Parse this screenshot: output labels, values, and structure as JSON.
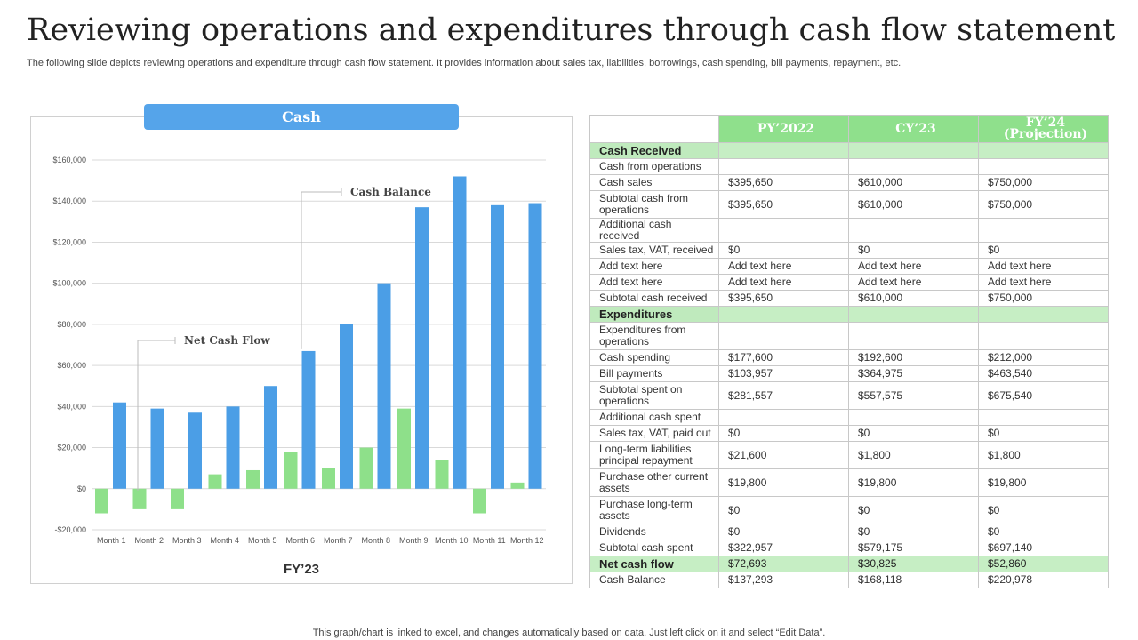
{
  "page": {
    "title": "Reviewing operations and expenditures through cash flow statement",
    "subtitle": "The following slide depicts reviewing operations and expenditure through cash flow statement. It provides information about sales tax, liabilities, borrowings, cash spending, bill payments, repayment, etc.",
    "footer": "This graph/chart is linked to excel,  and changes automatically based on data. Just left click on it and select “Edit Data”."
  },
  "chart_data": {
    "type": "bar",
    "title": "Cash",
    "xlabel": "FY’23",
    "ylabel": "",
    "categories": [
      "Month 1",
      "Month 2",
      "Month 3",
      "Month 4",
      "Month 5",
      "Month 6",
      "Month 7",
      "Month 8",
      "Month 9",
      "Month 10",
      "Month 11",
      "Month 12"
    ],
    "series": [
      {
        "name": "Net Cash Flow",
        "color": "#8ee08a",
        "values": [
          -12000,
          -10000,
          -10000,
          7000,
          9000,
          18000,
          10000,
          20000,
          39000,
          14000,
          -12000,
          3000
        ]
      },
      {
        "name": "Cash Balance",
        "color": "#4b9ee6",
        "values": [
          42000,
          39000,
          37000,
          40000,
          50000,
          67000,
          80000,
          100000,
          137000,
          152000,
          138000,
          139000
        ]
      }
    ],
    "ylim": [
      -20000,
      160000
    ],
    "yticks": [
      -20000,
      0,
      20000,
      40000,
      60000,
      80000,
      100000,
      120000,
      140000,
      160000
    ],
    "ytick_labels": [
      "-$20,000",
      "$0",
      "$20,000",
      "$40,000",
      "$60,000",
      "$80,000",
      "$100,000",
      "$120,000",
      "$140,000",
      "$160,000"
    ],
    "grid": true,
    "annotations": [
      "Net Cash Flow",
      "Cash Balance"
    ]
  },
  "table": {
    "headers": [
      "",
      "PY’2022",
      "CY’23",
      "FY’24 (Projection)"
    ],
    "rows": [
      {
        "type": "section",
        "cells": [
          "Cash Received",
          "",
          "",
          ""
        ]
      },
      {
        "type": "normal",
        "cells": [
          "Cash from operations",
          "",
          "",
          ""
        ]
      },
      {
        "type": "normal",
        "cells": [
          "Cash sales",
          "$395,650",
          "$610,000",
          "$750,000"
        ]
      },
      {
        "type": "tall",
        "cells": [
          "Subtotal cash from operations",
          "$395,650",
          "$610,000",
          "$750,000"
        ]
      },
      {
        "type": "normal",
        "cells": [
          "Additional cash received",
          "",
          "",
          ""
        ]
      },
      {
        "type": "normal",
        "cells": [
          "Sales tax, VAT,  received",
          "$0",
          "$0",
          "$0"
        ]
      },
      {
        "type": "normal",
        "cells": [
          "Add text here",
          "Add text here",
          "Add text here",
          "Add text here"
        ]
      },
      {
        "type": "normal",
        "cells": [
          "Add text here",
          "Add text here",
          "Add text here",
          "Add text here"
        ]
      },
      {
        "type": "normal",
        "cells": [
          "Subtotal cash received",
          "$395,650",
          "$610,000",
          "$750,000"
        ]
      },
      {
        "type": "section",
        "cells": [
          "Expenditures",
          "",
          "",
          ""
        ]
      },
      {
        "type": "tall",
        "cells": [
          "Expenditures from operations",
          "",
          "",
          ""
        ]
      },
      {
        "type": "normal",
        "cells": [
          "Cash spending",
          "$177,600",
          "$192,600",
          "$212,000"
        ]
      },
      {
        "type": "normal",
        "cells": [
          "Bill payments",
          "$103,957",
          "$364,975",
          "$463,540"
        ]
      },
      {
        "type": "tall",
        "cells": [
          "Subtotal spent on operations",
          "$281,557",
          "$557,575",
          "$675,540"
        ]
      },
      {
        "type": "normal",
        "cells": [
          "Additional cash spent",
          "",
          "",
          ""
        ]
      },
      {
        "type": "normal",
        "cells": [
          "Sales tax, VAT,  paid out",
          "$0",
          "$0",
          "$0"
        ]
      },
      {
        "type": "tall",
        "cells": [
          "Long-term liabilities principal repayment",
          "$21,600",
          "$1,800",
          "$1,800"
        ]
      },
      {
        "type": "tall",
        "cells": [
          "Purchase other current assets",
          "$19,800",
          "$19,800",
          "$19,800"
        ]
      },
      {
        "type": "tall",
        "cells": [
          "Purchase long-term assets",
          "$0",
          "$0",
          "$0"
        ]
      },
      {
        "type": "normal",
        "cells": [
          "Dividends",
          "$0",
          "$0",
          "$0"
        ]
      },
      {
        "type": "normal",
        "cells": [
          "Subtotal cash spent",
          "$322,957",
          "$579,175",
          "$697,140"
        ]
      },
      {
        "type": "net",
        "cells": [
          "Net cash flow",
          "$72,693",
          "$30,825",
          "$52,860"
        ]
      },
      {
        "type": "normal",
        "cells": [
          "Cash Balance",
          "$137,293",
          "$168,118",
          "$220,978"
        ]
      }
    ]
  }
}
